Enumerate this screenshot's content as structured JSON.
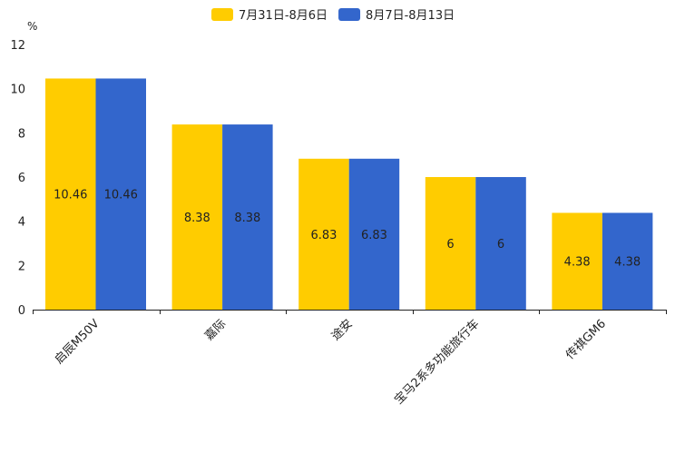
{
  "chart_data": {
    "type": "bar",
    "title": "",
    "ylabel": "%",
    "xlabel": "",
    "ylim": [
      0,
      12
    ],
    "yticks": [
      0,
      2,
      4,
      6,
      8,
      10,
      12
    ],
    "grid": false,
    "legend_position": "top-center",
    "categories": [
      "启辰M50V",
      "嘉际",
      "途安",
      "宝马2系多功能旅行车",
      "传祺GM6"
    ],
    "series": [
      {
        "name": "7月31日-8月6日",
        "color": "#FFCC00",
        "values": [
          10.46,
          8.38,
          6.83,
          6,
          4.38
        ]
      },
      {
        "name": "8月7日-8月13日",
        "color": "#3366CC",
        "values": [
          10.46,
          8.38,
          6.83,
          6,
          4.38
        ]
      }
    ]
  }
}
